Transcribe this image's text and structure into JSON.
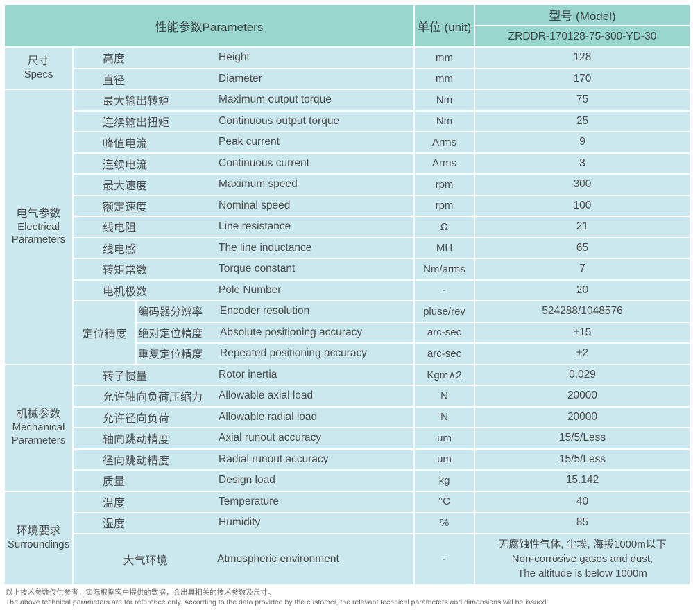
{
  "colors": {
    "header_bg": "#99d6cd",
    "cell_bg": "#cbe8ef"
  },
  "header": {
    "parameters": "性能参数Parameters",
    "unit": "单位 (unit)",
    "model_label": "型号 (Model)",
    "model_value": "ZRDDR-170128-75-300-YD-30"
  },
  "sections": [
    {
      "category": [
        "尺寸",
        "Specs"
      ],
      "rows": [
        {
          "zh": "高度",
          "en": "Height",
          "unit": "mm",
          "value": "128"
        },
        {
          "zh": "直径",
          "en": "Diameter",
          "unit": "mm",
          "value": "170"
        }
      ]
    },
    {
      "category": [
        "电气参数",
        "Electrical",
        "Parameters"
      ],
      "rows": [
        {
          "zh": "最大输出转矩",
          "en": "Maximum output torque",
          "unit": "Nm",
          "value": "75"
        },
        {
          "zh": "连续输出扭矩",
          "en": "Continuous output torque",
          "unit": "Nm",
          "value": "25"
        },
        {
          "zh": "峰值电流",
          "en": "Peak current",
          "unit": "Arms",
          "value": "9"
        },
        {
          "zh": "连续电流",
          "en": "Continuous current",
          "unit": "Arms",
          "value": "3"
        },
        {
          "zh": "最大速度",
          "en": "Maximum speed",
          "unit": "rpm",
          "value": "300"
        },
        {
          "zh": "额定速度",
          "en": "Nominal speed",
          "unit": "rpm",
          "value": "100"
        },
        {
          "zh": "线电阻",
          "en": "Line resistance",
          "unit": "Ω",
          "value": "21"
        },
        {
          "zh": "线电感",
          "en": "The line inductance",
          "unit": "MH",
          "value": "65"
        },
        {
          "zh": "转矩常数",
          "en": "Torque constant",
          "unit": "Nm/arms",
          "value": "7"
        },
        {
          "zh": "电机极数",
          "en": "Pole Number",
          "unit": "-",
          "value": "20"
        },
        {
          "group": "定位精度",
          "group_span": 3,
          "in_group": true,
          "zh": "编码器分辨率",
          "en": "Encoder resolution",
          "unit": "pluse/rev",
          "value": "524288/1048576"
        },
        {
          "in_group": true,
          "zh": "绝对定位精度",
          "en": "Absolute positioning accuracy",
          "unit": "arc-sec",
          "value": "±15"
        },
        {
          "in_group": true,
          "zh": "重复定位精度",
          "en": "Repeated positioning accuracy",
          "unit": "arc-sec",
          "value": "±2"
        }
      ]
    },
    {
      "category": [
        "机械参数",
        "Mechanical",
        "Parameters"
      ],
      "rows": [
        {
          "zh": "转子惯量",
          "en": "Rotor inertia",
          "unit": "Kgm∧2",
          "value": "0.029"
        },
        {
          "zh": "允许轴向负荷压缩力",
          "en": "Allowable axial load",
          "unit": "N",
          "value": "20000"
        },
        {
          "zh": "允许径向负荷",
          "en": "Allowable radial load",
          "unit": "N",
          "value": "20000"
        },
        {
          "zh": "轴向跳动精度",
          "en": "Axial runout accuracy",
          "unit": "um",
          "value": "15/5/Less"
        },
        {
          "zh": "径向跳动精度",
          "en": "Radial runout accuracy",
          "unit": "um",
          "value": "15/5/Less"
        },
        {
          "zh": "质量",
          "en": "Design load",
          "unit": "kg",
          "value": "15.142"
        }
      ]
    },
    {
      "category": [
        "环境要求",
        "Surroundings"
      ],
      "rows": [
        {
          "zh": "温度",
          "en": "Temperature",
          "unit": "°C",
          "value": "40"
        },
        {
          "zh": "湿度",
          "en": "Humidity",
          "unit": "%",
          "value": "85"
        },
        {
          "zh": "大气环境",
          "en": "Atmospheric environment",
          "unit": "-",
          "tall": true,
          "center_zh": true,
          "value_lines": [
            "无腐蚀性气体, 尘埃, 海拔1000m以下",
            "Non-corrosive gases and dust,",
            "The altitude is below 1000m"
          ]
        }
      ]
    }
  ],
  "notes": {
    "zh": "以上技术参数仅供参考，实际根据客户提供的数据，会出具相关的技术参数及尺寸。",
    "en": "The above technical parameters are for reference only. According to the data provided by the customer, the relevant technical parameters and dimensions will be issued."
  }
}
